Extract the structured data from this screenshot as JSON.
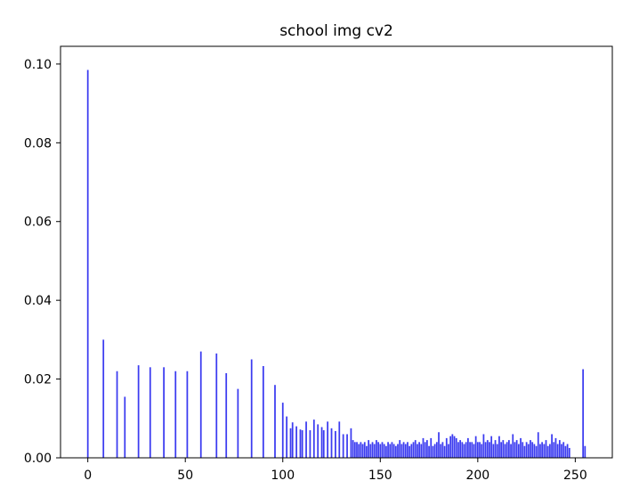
{
  "chart_data": {
    "type": "bar",
    "title": "school img cv2",
    "xlabel": "",
    "ylabel": "",
    "xlim": [
      -14,
      269
    ],
    "ylim": [
      0,
      0.1045
    ],
    "xticks": [
      0,
      50,
      100,
      150,
      200,
      250
    ],
    "xtick_labels": [
      "0",
      "50",
      "100",
      "150",
      "200",
      "250"
    ],
    "yticks": [
      0,
      0.02,
      0.04,
      0.06,
      0.08,
      0.1
    ],
    "ytick_labels": [
      "0.00",
      "0.02",
      "0.04",
      "0.06",
      "0.08",
      "0.10"
    ],
    "grid": false,
    "legend": "none",
    "bar_color": "#3b3bf0",
    "x": [
      0,
      8,
      15,
      19,
      26,
      32,
      39,
      45,
      51,
      58,
      66,
      71,
      77,
      84,
      90,
      96,
      100,
      102,
      104,
      105,
      107,
      109,
      110,
      112,
      114,
      116,
      118,
      120,
      121,
      123,
      125,
      127,
      129,
      131,
      133,
      135,
      136,
      137,
      138,
      139,
      140,
      141,
      142,
      143,
      144,
      145,
      146,
      147,
      148,
      149,
      150,
      151,
      152,
      153,
      154,
      155,
      156,
      157,
      158,
      159,
      160,
      161,
      162,
      163,
      164,
      165,
      166,
      167,
      168,
      169,
      170,
      171,
      172,
      173,
      174,
      175,
      176,
      177,
      178,
      179,
      180,
      181,
      182,
      183,
      184,
      185,
      186,
      187,
      188,
      189,
      190,
      191,
      192,
      193,
      194,
      195,
      196,
      197,
      198,
      199,
      200,
      201,
      202,
      203,
      204,
      205,
      206,
      207,
      208,
      209,
      210,
      211,
      212,
      213,
      214,
      215,
      216,
      217,
      218,
      219,
      220,
      221,
      222,
      223,
      224,
      225,
      226,
      227,
      228,
      229,
      230,
      231,
      232,
      233,
      234,
      235,
      236,
      237,
      238,
      239,
      240,
      241,
      242,
      243,
      244,
      245,
      246,
      247,
      254,
      255
    ],
    "values": [
      0.0985,
      0.03,
      0.022,
      0.0155,
      0.0235,
      0.023,
      0.023,
      0.022,
      0.022,
      0.027,
      0.0265,
      0.0215,
      0.0175,
      0.025,
      0.0233,
      0.0185,
      0.014,
      0.0105,
      0.0075,
      0.009,
      0.008,
      0.0072,
      0.007,
      0.0092,
      0.007,
      0.0097,
      0.0085,
      0.0078,
      0.007,
      0.0092,
      0.0075,
      0.0068,
      0.0092,
      0.006,
      0.006,
      0.0075,
      0.0045,
      0.004,
      0.004,
      0.0035,
      0.004,
      0.0035,
      0.004,
      0.003,
      0.0045,
      0.0035,
      0.004,
      0.0035,
      0.0045,
      0.004,
      0.0035,
      0.004,
      0.0035,
      0.003,
      0.004,
      0.0035,
      0.004,
      0.0035,
      0.003,
      0.0035,
      0.0045,
      0.0035,
      0.004,
      0.0035,
      0.004,
      0.003,
      0.0035,
      0.004,
      0.0045,
      0.0035,
      0.004,
      0.0035,
      0.005,
      0.004,
      0.0045,
      0.003,
      0.005,
      0.003,
      0.0035,
      0.004,
      0.0065,
      0.0035,
      0.004,
      0.003,
      0.005,
      0.0035,
      0.0055,
      0.006,
      0.0055,
      0.005,
      0.004,
      0.0045,
      0.004,
      0.0035,
      0.004,
      0.005,
      0.004,
      0.004,
      0.0035,
      0.0055,
      0.004,
      0.004,
      0.0035,
      0.006,
      0.004,
      0.0045,
      0.004,
      0.0055,
      0.0035,
      0.0045,
      0.0035,
      0.0055,
      0.004,
      0.0045,
      0.0035,
      0.004,
      0.0045,
      0.0035,
      0.006,
      0.004,
      0.0045,
      0.0035,
      0.005,
      0.004,
      0.003,
      0.004,
      0.0035,
      0.0045,
      0.004,
      0.0035,
      0.003,
      0.0065,
      0.0035,
      0.004,
      0.0035,
      0.0045,
      0.003,
      0.0035,
      0.006,
      0.004,
      0.005,
      0.0035,
      0.0045,
      0.0035,
      0.004,
      0.003,
      0.0035,
      0.0025,
      0.0225,
      0.003
    ]
  }
}
